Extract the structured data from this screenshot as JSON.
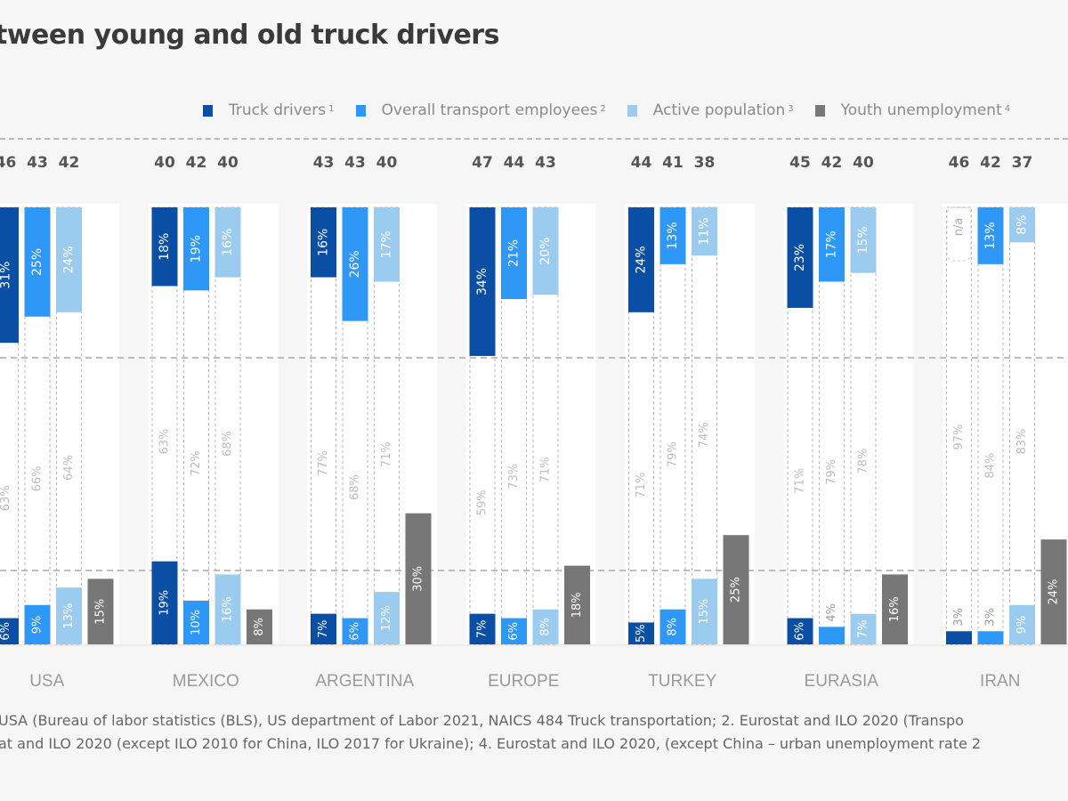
{
  "title": "tween young and old truck drivers",
  "legend": [
    {
      "label": "Truck drivers",
      "sup": "1",
      "color": "#0a4fa3"
    },
    {
      "label": "Overall transport employees",
      "sup": "2",
      "color": "#2f97f5"
    },
    {
      "label": "Active population",
      "sup": "3",
      "color": "#9ccbf0"
    },
    {
      "label": "Youth unemployment",
      "sup": "4",
      "color": "#777777"
    }
  ],
  "footnotes": [
    "USA (Bureau of labor statistics (BLS), US department of Labor 2021, NAICS 484 Truck transportation; 2. Eurostat and ILO 2020 (Transpo",
    "at and ILO 2020 (except ILO 2010 for China, ILO 2017 for Ukraine); 4. Eurostat and ILO 2020, (except China –  urban unemployment rate 2"
  ],
  "chart_data": {
    "type": "bar",
    "stacked": true,
    "title": "tween young and old truck drivers",
    "ylim": [
      0,
      100
    ],
    "yunit": "%",
    "grid": "dashed",
    "legend_position": "top-right",
    "series_names": [
      "Truck drivers",
      "Overall transport employees",
      "Active population",
      "Youth unemployment"
    ],
    "segment_names": [
      "young share (top)",
      "middle share",
      "old share (bottom)"
    ],
    "categories": [
      {
        "name": "USA",
        "avg_age": [
          "46",
          "43",
          "42"
        ],
        "groups": [
          {
            "series": "Truck drivers",
            "top": 31,
            "mid": 63,
            "bottom": 6
          },
          {
            "series": "Overall transport employees",
            "top": 25,
            "mid": 66,
            "bottom": 9
          },
          {
            "series": "Active population",
            "top": 24,
            "mid": 64,
            "bottom": 13
          }
        ],
        "youth_unemployment": 15
      },
      {
        "name": "MEXICO",
        "avg_age": [
          "40",
          "42",
          "40"
        ],
        "groups": [
          {
            "series": "Truck drivers",
            "top": 18,
            "mid": 63,
            "bottom": 19
          },
          {
            "series": "Overall transport employees",
            "top": 19,
            "mid": 72,
            "bottom": 10
          },
          {
            "series": "Active population",
            "top": 16,
            "mid": 68,
            "bottom": 16
          }
        ],
        "youth_unemployment": 8
      },
      {
        "name": "ARGENTINA",
        "avg_age": [
          "43",
          "43",
          "40"
        ],
        "groups": [
          {
            "series": "Truck drivers",
            "top": 16,
            "mid": 77,
            "bottom": 7
          },
          {
            "series": "Overall transport employees",
            "top": 26,
            "mid": 68,
            "bottom": 6
          },
          {
            "series": "Active population",
            "top": 17,
            "mid": 71,
            "bottom": 12
          }
        ],
        "youth_unemployment": 30
      },
      {
        "name": "EUROPE",
        "avg_age": [
          "47",
          "44",
          "43"
        ],
        "groups": [
          {
            "series": "Truck drivers",
            "top": 34,
            "mid": 59,
            "bottom": 7
          },
          {
            "series": "Overall transport employees",
            "top": 21,
            "mid": 73,
            "bottom": 6
          },
          {
            "series": "Active population",
            "top": 20,
            "mid": 71,
            "bottom": 8
          }
        ],
        "youth_unemployment": 18
      },
      {
        "name": "TURKEY",
        "avg_age": [
          "44",
          "41",
          "38"
        ],
        "groups": [
          {
            "series": "Truck drivers",
            "top": 24,
            "mid": 71,
            "bottom": 5
          },
          {
            "series": "Overall transport employees",
            "top": 13,
            "mid": 79,
            "bottom": 8
          },
          {
            "series": "Active population",
            "top": 11,
            "mid": 74,
            "bottom": 15
          }
        ],
        "youth_unemployment": 25
      },
      {
        "name": "EURASIA",
        "avg_age": [
          "45",
          "42",
          "40"
        ],
        "groups": [
          {
            "series": "Truck drivers",
            "top": 23,
            "mid": 71,
            "bottom": 6
          },
          {
            "series": "Overall transport employees",
            "top": 17,
            "mid": 79,
            "bottom": 4
          },
          {
            "series": "Active population",
            "top": 15,
            "mid": 78,
            "bottom": 7
          }
        ],
        "youth_unemployment": 16
      },
      {
        "name": "IRAN",
        "avg_age": [
          "46",
          "42",
          "37"
        ],
        "groups": [
          {
            "series": "Truck drivers",
            "top": null,
            "top_label": "n/a",
            "mid": 97,
            "bottom": 3
          },
          {
            "series": "Overall transport employees",
            "top": 13,
            "mid": 84,
            "bottom": 3
          },
          {
            "series": "Active population",
            "top": 8,
            "mid": 83,
            "bottom": 9
          }
        ],
        "youth_unemployment": 24
      }
    ]
  }
}
